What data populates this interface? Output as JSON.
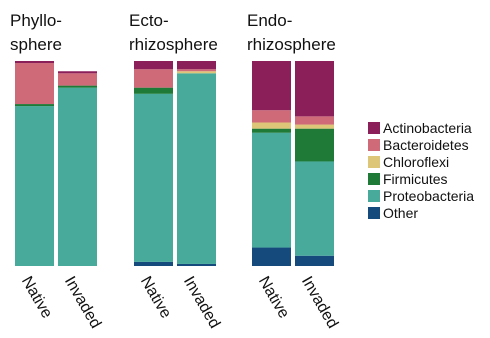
{
  "chart_data": {
    "type": "bar",
    "stacked": true,
    "normalized": true,
    "ylim": [
      0,
      1
    ],
    "panels": [
      {
        "title_lines": [
          "Phyllo-",
          "sphere"
        ],
        "categories": [
          "Native",
          "Invaded"
        ],
        "series_values": {
          "Other": [
            0.0,
            0.0
          ],
          "Proteobacteria": [
            0.78,
            0.87
          ],
          "Firmicutes": [
            0.01,
            0.01
          ],
          "Chloroflexi": [
            0.0,
            0.0
          ],
          "Bacteroidetes": [
            0.2,
            0.06
          ],
          "Actinobacteria": [
            0.01,
            0.01
          ]
        }
      },
      {
        "title_lines": [
          "Ecto-",
          "rhizosphere"
        ],
        "categories": [
          "Native",
          "Invaded"
        ],
        "series_values": {
          "Other": [
            0.02,
            0.01
          ],
          "Proteobacteria": [
            0.82,
            0.93
          ],
          "Firmicutes": [
            0.03,
            0.0
          ],
          "Chloroflexi": [
            0.0,
            0.01
          ],
          "Bacteroidetes": [
            0.09,
            0.01
          ],
          "Actinobacteria": [
            0.04,
            0.04
          ]
        }
      },
      {
        "title_lines": [
          "Endo-",
          "rhizosphere"
        ],
        "categories": [
          "Native",
          "Invaded"
        ],
        "series_values": {
          "Other": [
            0.09,
            0.05
          ],
          "Proteobacteria": [
            0.56,
            0.46
          ],
          "Firmicutes": [
            0.02,
            0.16
          ],
          "Chloroflexi": [
            0.03,
            0.02
          ],
          "Bacteroidetes": [
            0.06,
            0.04
          ],
          "Actinobacteria": [
            0.24,
            0.27
          ]
        }
      }
    ],
    "stack_order": [
      "Other",
      "Proteobacteria",
      "Firmicutes",
      "Chloroflexi",
      "Bacteroidetes",
      "Actinobacteria"
    ],
    "legend": {
      "placement": "right",
      "entries": [
        {
          "name": "Actinobacteria",
          "color": "#8b1f5a"
        },
        {
          "name": "Bacteroidetes",
          "color": "#cf6a79"
        },
        {
          "name": "Chloroflexi",
          "color": "#ddc678"
        },
        {
          "name": "Firmicutes",
          "color": "#1f7a38"
        },
        {
          "name": "Proteobacteria",
          "color": "#47aa9b"
        },
        {
          "name": "Other",
          "color": "#154a7d"
        }
      ]
    },
    "grid": false
  }
}
